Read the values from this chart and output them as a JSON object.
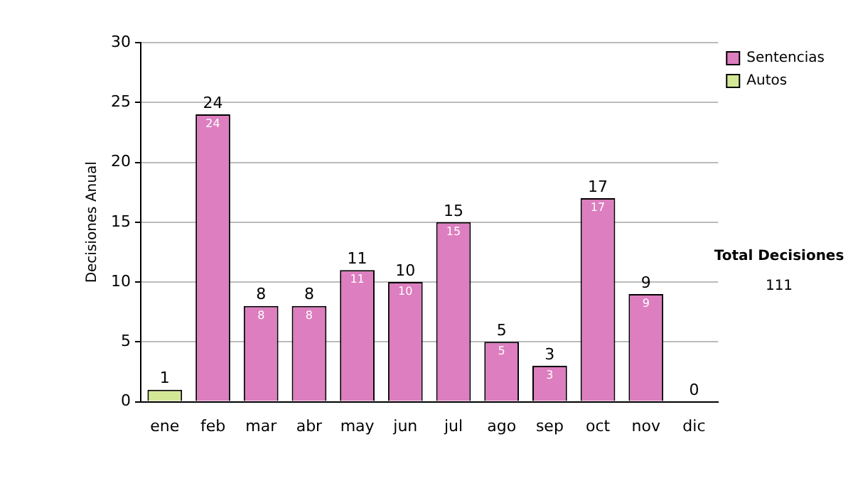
{
  "chart_data": {
    "type": "bar",
    "stacked": true,
    "ylabel": "Decisiones Anual",
    "categories": [
      "ene",
      "feb",
      "mar",
      "abr",
      "may",
      "jun",
      "jul",
      "ago",
      "sep",
      "oct",
      "nov",
      "dic"
    ],
    "series": [
      {
        "name": "Sentencias",
        "color": "#dc7ebf",
        "values": [
          0,
          24,
          8,
          8,
          11,
          10,
          15,
          5,
          3,
          17,
          9,
          0
        ],
        "value_labels": [
          null,
          "24",
          "8",
          "8",
          "11",
          "10",
          "15",
          "5",
          "3",
          "17",
          "9",
          null
        ]
      },
      {
        "name": "Autos",
        "color": "#d3e896",
        "values": [
          1,
          0,
          0,
          0,
          0,
          0,
          0,
          0,
          0,
          0,
          0,
          0
        ]
      }
    ],
    "totals": [
      "1",
      "24",
      "8",
      "8",
      "11",
      "10",
      "15",
      "5",
      "3",
      "17",
      "9",
      "0"
    ],
    "ylim": [
      0,
      30
    ],
    "yticks": [
      0,
      5,
      10,
      15,
      20,
      25,
      30
    ],
    "grid": "y",
    "legend": "top right",
    "annotations": [
      "Total Decisiones",
      "111"
    ]
  }
}
